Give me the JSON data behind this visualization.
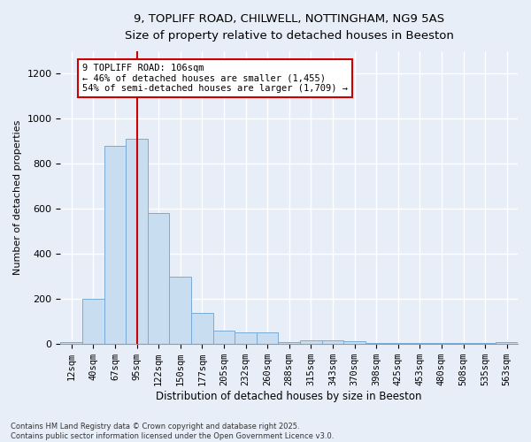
{
  "title_line1": "9, TOPLIFF ROAD, CHILWELL, NOTTINGHAM, NG9 5AS",
  "title_line2": "Size of property relative to detached houses in Beeston",
  "xlabel": "Distribution of detached houses by size in Beeston",
  "ylabel": "Number of detached properties",
  "categories": [
    "12sqm",
    "40sqm",
    "67sqm",
    "95sqm",
    "122sqm",
    "150sqm",
    "177sqm",
    "205sqm",
    "232sqm",
    "260sqm",
    "288sqm",
    "315sqm",
    "343sqm",
    "370sqm",
    "398sqm",
    "425sqm",
    "453sqm",
    "480sqm",
    "508sqm",
    "535sqm",
    "563sqm"
  ],
  "values": [
    8,
    200,
    880,
    910,
    580,
    300,
    140,
    60,
    50,
    50,
    10,
    18,
    18,
    12,
    3,
    3,
    3,
    3,
    3,
    3,
    8
  ],
  "bar_color": "#c8ddf0",
  "bar_edge_color": "#7aaad4",
  "annotation_box_text": "9 TOPLIFF ROAD: 106sqm\n← 46% of detached houses are smaller (1,455)\n54% of semi-detached houses are larger (1,709) →",
  "annotation_box_color": "white",
  "annotation_box_edge_color": "#cc0000",
  "vline_color": "#cc0000",
  "vline_x": 3.0,
  "ylim": [
    0,
    1300
  ],
  "yticks": [
    0,
    200,
    400,
    600,
    800,
    1000,
    1200
  ],
  "background_color": "#e8eef8",
  "grid_color": "white",
  "footnote": "Contains HM Land Registry data © Crown copyright and database right 2025.\nContains public sector information licensed under the Open Government Licence v3.0."
}
